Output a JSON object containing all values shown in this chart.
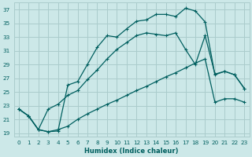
{
  "xlabel": "Humidex (Indice chaleur)",
  "bg_color": "#cce8e8",
  "grid_color": "#aacccc",
  "line_color": "#005f5f",
  "xlim": [
    -0.5,
    23.5
  ],
  "ylim": [
    18.5,
    38.0
  ],
  "xticks": [
    0,
    1,
    2,
    3,
    4,
    5,
    6,
    7,
    8,
    9,
    10,
    11,
    12,
    13,
    14,
    15,
    16,
    17,
    18,
    19,
    20,
    21,
    22,
    23
  ],
  "yticks": [
    19,
    21,
    23,
    25,
    27,
    29,
    31,
    33,
    35,
    37
  ],
  "line1_x": [
    0,
    1,
    2,
    3,
    4,
    5,
    6,
    7,
    8,
    9,
    10,
    11,
    12,
    13,
    14,
    15,
    16,
    17,
    18,
    19,
    20,
    21,
    22,
    23
  ],
  "line1_y": [
    22.5,
    21.5,
    19.5,
    19.2,
    19.3,
    26.0,
    26.5,
    29.0,
    31.5,
    33.2,
    33.0,
    34.2,
    35.3,
    35.5,
    36.3,
    36.3,
    36.0,
    37.2,
    36.8,
    35.2,
    27.5,
    28.0,
    27.5,
    25.5
  ],
  "line2_x": [
    0,
    1,
    2,
    3,
    4,
    5,
    6,
    7,
    8,
    9,
    10,
    11,
    12,
    13,
    14,
    15,
    16,
    17,
    18,
    19,
    20,
    21,
    22,
    23
  ],
  "line2_y": [
    22.5,
    21.5,
    19.5,
    22.5,
    23.2,
    24.5,
    25.2,
    26.8,
    28.2,
    29.8,
    31.2,
    32.2,
    33.2,
    33.6,
    33.4,
    33.2,
    33.6,
    31.2,
    29.0,
    33.2,
    27.6,
    28.0,
    27.5,
    25.5
  ],
  "line3_x": [
    0,
    1,
    2,
    3,
    4,
    5,
    6,
    7,
    8,
    9,
    10,
    11,
    12,
    13,
    14,
    15,
    16,
    17,
    18,
    19,
    20,
    21,
    22,
    23
  ],
  "line3_y": [
    22.5,
    21.5,
    19.5,
    19.2,
    19.5,
    20.0,
    21.0,
    21.8,
    22.5,
    23.2,
    23.8,
    24.5,
    25.2,
    25.8,
    26.5,
    27.2,
    27.8,
    28.5,
    29.2,
    29.8,
    23.5,
    24.0,
    24.0,
    23.5
  ]
}
